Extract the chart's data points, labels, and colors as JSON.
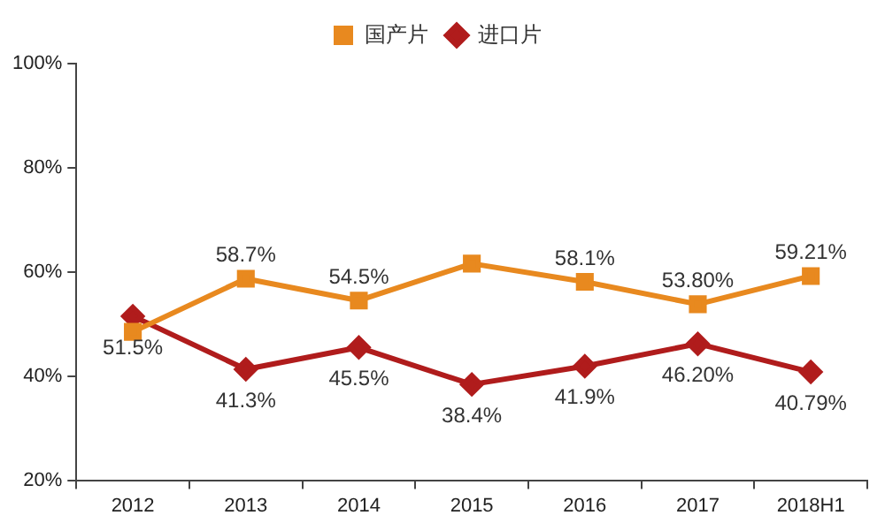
{
  "chart_data": {
    "type": "line",
    "categories": [
      "2012",
      "2013",
      "2014",
      "2015",
      "2016",
      "2017",
      "2018H1"
    ],
    "series": [
      {
        "name": "国产片",
        "color": "#e8891f",
        "marker": "square",
        "values": [
          48.5,
          58.7,
          54.5,
          61.6,
          58.1,
          53.8,
          59.21
        ],
        "value_labels": [
          null,
          "58.7%",
          "54.5%",
          null,
          "58.1%",
          "53.80%",
          "59.21%"
        ]
      },
      {
        "name": "进口片",
        "color": "#b01c1c",
        "marker": "diamond",
        "values": [
          51.5,
          41.3,
          45.5,
          38.4,
          41.9,
          46.2,
          40.79
        ],
        "value_labels": [
          "51.5%",
          "41.3%",
          "45.5%",
          "38.4%",
          "41.9%",
          "46.20%",
          "40.79%"
        ]
      }
    ],
    "ylim": [
      20,
      100
    ],
    "yticks": [
      {
        "value": 20,
        "label": "20%"
      },
      {
        "value": 40,
        "label": "40%"
      },
      {
        "value": 60,
        "label": "60%"
      },
      {
        "value": 80,
        "label": "80%"
      },
      {
        "value": 100,
        "label": "100%"
      }
    ],
    "grid": false,
    "legend": "top",
    "line_style": "solid"
  }
}
